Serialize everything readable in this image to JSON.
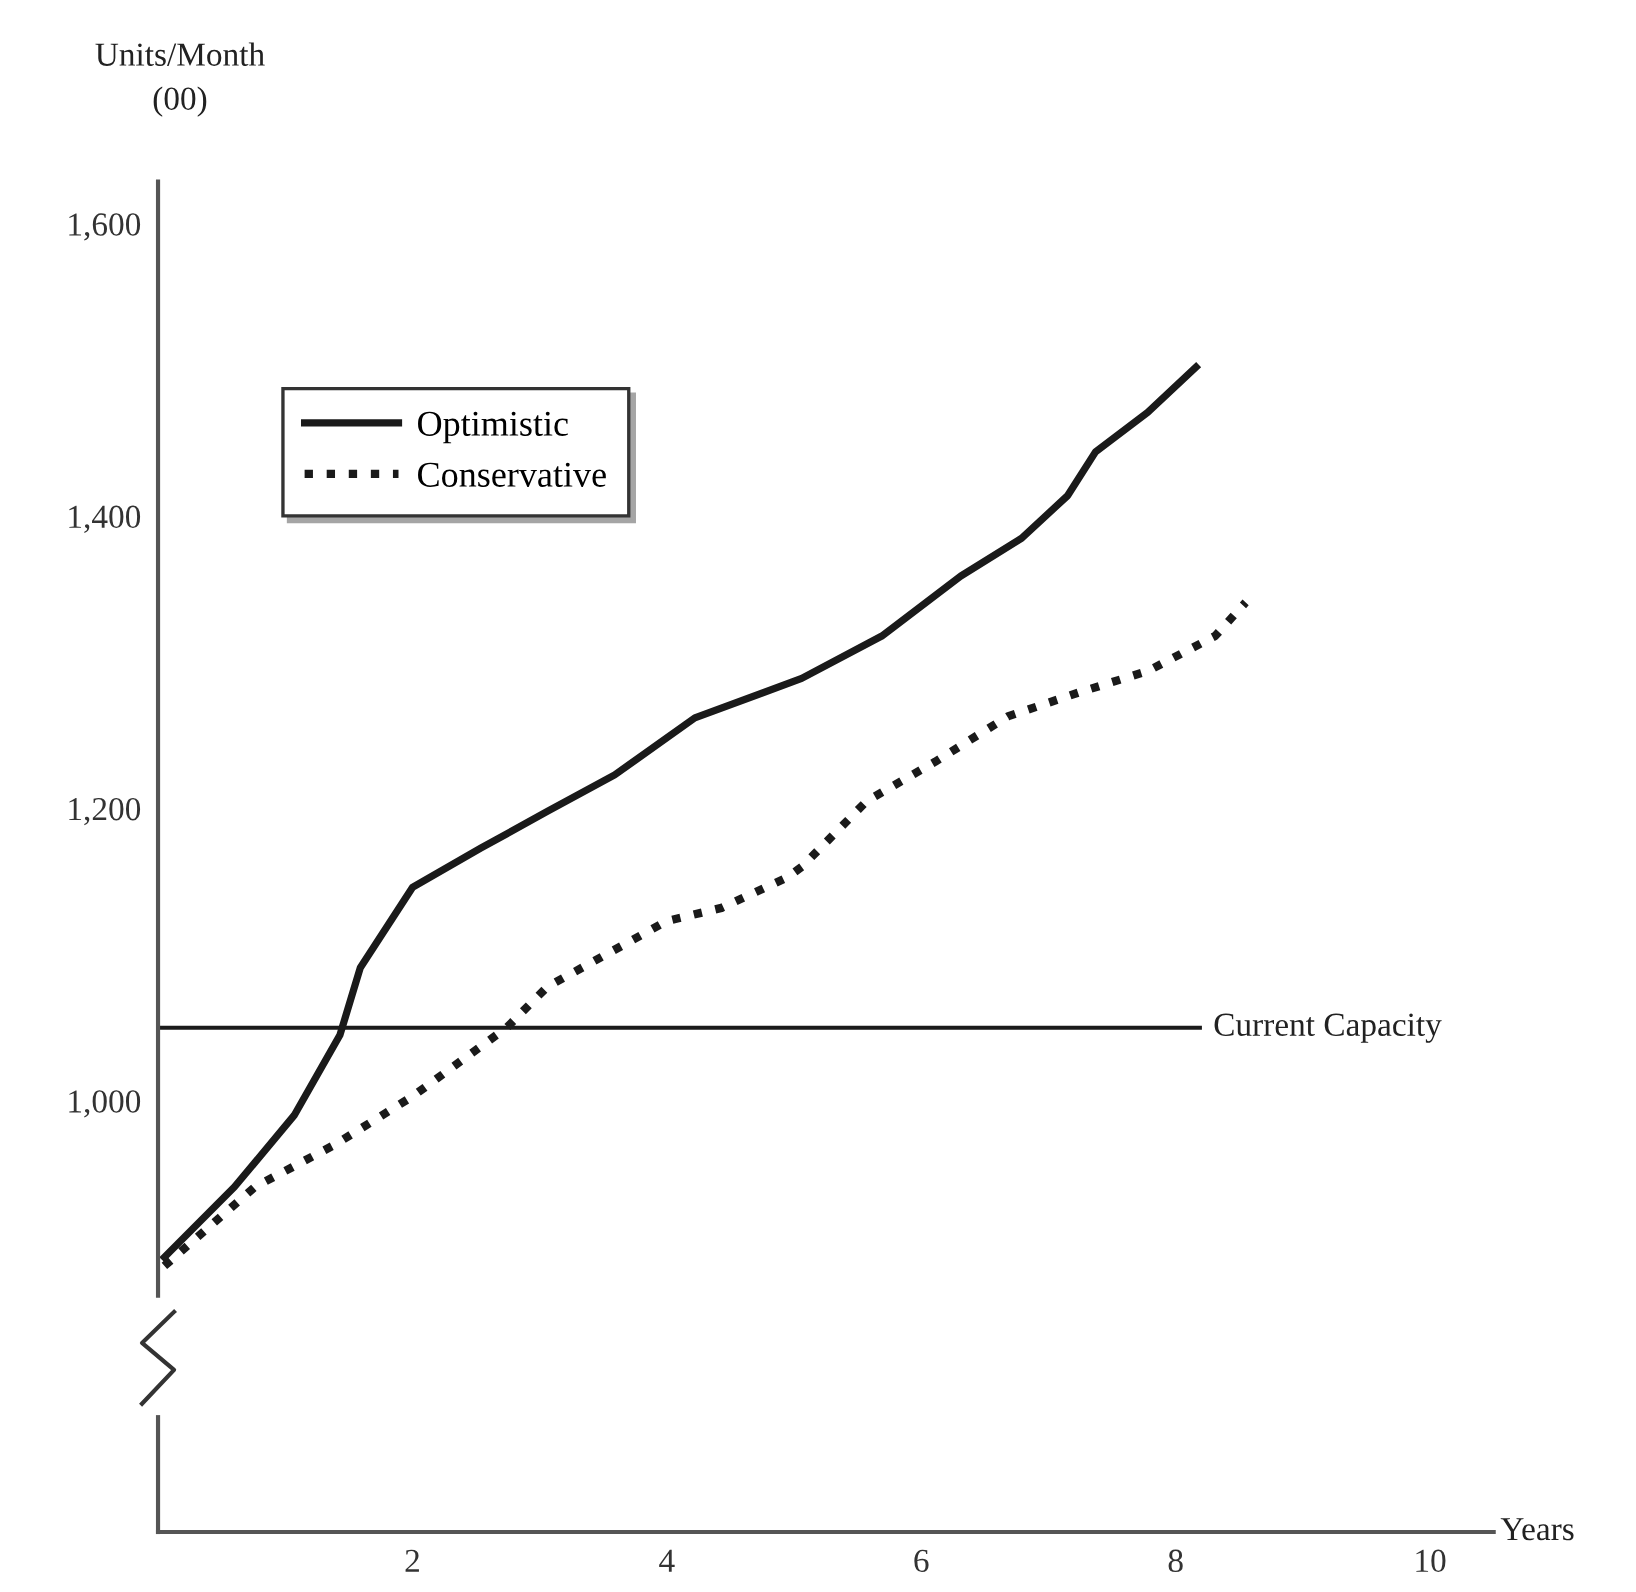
{
  "chart_data": {
    "type": "line",
    "ylabel": "Units/Month\n(00)",
    "xlabel": "Years",
    "xlim": [
      0,
      10.5
    ],
    "ylim": [
      705,
      1629
    ],
    "xticks": [
      2,
      4,
      6,
      8,
      10
    ],
    "yticks": [
      {
        "value": 1000,
        "label": "1,000"
      },
      {
        "value": 1200,
        "label": "1,200"
      },
      {
        "value": 1400,
        "label": "1,400"
      },
      {
        "value": 1600,
        "label": "1,600"
      }
    ],
    "grid": false,
    "legend": "top left",
    "marker": "none",
    "series": [
      {
        "name": "Optimistic",
        "color": "#1a1a1a",
        "line_style": "solid",
        "x": [
          0.05,
          0.6,
          1.07,
          1.43,
          1.59,
          2.0,
          2.54,
          3.06,
          3.59,
          4.22,
          5.06,
          5.69,
          6.31,
          6.79,
          7.15,
          7.37,
          7.78,
          8.16
        ],
        "values": [
          893,
          941,
          990,
          1045,
          1091,
          1146,
          1173,
          1198,
          1223,
          1262,
          1289,
          1318,
          1359,
          1385,
          1414,
          1444,
          1471,
          1502
        ]
      },
      {
        "name": "Conservative",
        "color": "#1a1a1a",
        "line_style": "dotted",
        "x": [
          0.05,
          0.76,
          1.39,
          2.0,
          2.74,
          3.06,
          4.0,
          4.43,
          4.95,
          5.06,
          5.57,
          6.11,
          6.68,
          7.26,
          7.78,
          8.31,
          8.55
        ],
        "values": [
          887,
          941,
          970,
          1003,
          1050,
          1078,
          1123,
          1132,
          1153,
          1160,
          1205,
          1232,
          1263,
          1280,
          1294,
          1318,
          1341
        ]
      }
    ],
    "ref_lines": [
      {
        "axis": "y",
        "value": 1050,
        "label": "Current Capacity",
        "color": "#1a1a1a",
        "line_style": "solid"
      }
    ]
  }
}
